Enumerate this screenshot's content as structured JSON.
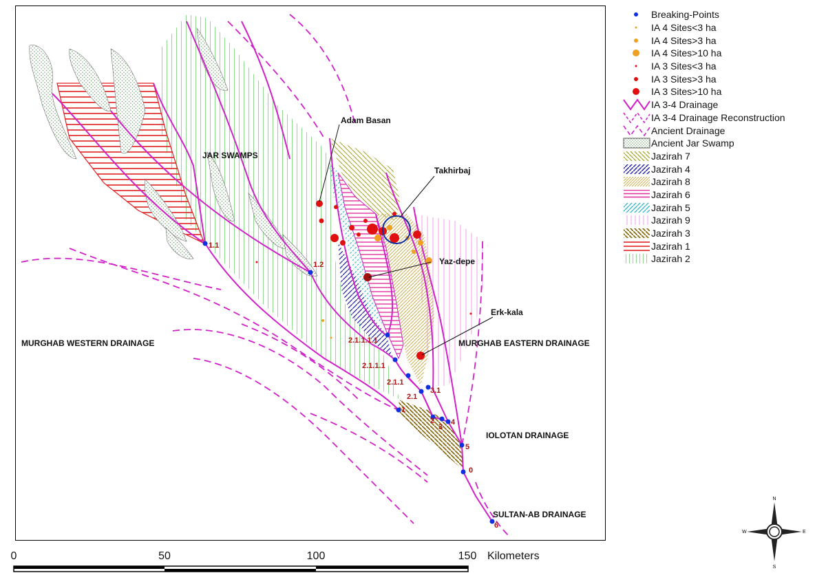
{
  "map": {
    "region_labels": {
      "jar_swamps": "JAR SWAMPS",
      "murghab_western": "MURGHAB WESTERN DRAINAGE",
      "murghab_eastern": "MURGHAB EASTERN DRAINAGE",
      "iolotan": "IOLOTAN DRAINAGE",
      "sultan_ab": "SULTAN-AB DRAINAGE"
    },
    "site_labels": {
      "adam_basan": "Adam Basan",
      "takhirbaj": "Takhirbaj",
      "yaz_depe": "Yaz-depe",
      "erk_kala": "Erk-kala"
    },
    "breaking_points": [
      "1.1",
      "1.2",
      "2.1.1.1.1",
      "2.1.1.1",
      "2.1.1",
      "2.1",
      "3.1",
      "1",
      "2",
      "3",
      "4",
      "5",
      "0",
      "6"
    ],
    "colors": {
      "drainage": "#d020c8",
      "breaking_point": "#1030e0",
      "ia3_site": "#e01010",
      "ia4_site": "#f0a020",
      "jazirah1": "#e02020",
      "jazirah2": "#90d890",
      "jazirah3": "#806000",
      "jazirah4": "#2020a0",
      "jazirah5": "#20b0c0",
      "jazirah6": "#e030a0",
      "jazirah7": "#a0a020",
      "jazirah8": "#c8b050",
      "jazirah9": "#e8a0e8",
      "swamp": "#70a070"
    }
  },
  "legend": {
    "items": [
      {
        "label": "Breaking-Points",
        "symbol": "breaking-point"
      },
      {
        "label": "IA 4 Sites<3 ha",
        "symbol": "ia4-small"
      },
      {
        "label": "IA 4 Sites>3 ha",
        "symbol": "ia4-medium"
      },
      {
        "label": "IA 4 Sites>10 ha",
        "symbol": "ia4-large"
      },
      {
        "label": "IA 3 Sites<3 ha",
        "symbol": "ia3-small"
      },
      {
        "label": "IA 3 Sites>3 ha",
        "symbol": "ia3-medium"
      },
      {
        "label": "IA 3 Sites>10 ha",
        "symbol": "ia3-large"
      },
      {
        "label": "IA 3-4 Drainage",
        "symbol": "drainage"
      },
      {
        "label": "IA 3-4 Drainage Reconstruction",
        "symbol": "drainage-reconstruction"
      },
      {
        "label": "Ancient Drainage",
        "symbol": "ancient-drainage"
      },
      {
        "label": "Ancient Jar Swamp",
        "symbol": "swamp"
      },
      {
        "label": "Jazirah 7",
        "symbol": "jazirah7"
      },
      {
        "label": "Jazirah 4",
        "symbol": "jazirah4"
      },
      {
        "label": "Jazirah 8",
        "symbol": "jazirah8"
      },
      {
        "label": "Jazirah 6",
        "symbol": "jazirah6"
      },
      {
        "label": "Jazirah 5",
        "symbol": "jazirah5"
      },
      {
        "label": "Jazirah 9",
        "symbol": "jazirah9"
      },
      {
        "label": "Jazirah 3",
        "symbol": "jazirah3"
      },
      {
        "label": "Jazirah 1",
        "symbol": "jazirah1"
      },
      {
        "label": "Jazirah 2",
        "symbol": "jazirah2"
      }
    ]
  },
  "scale": {
    "ticks": [
      "0",
      "50",
      "100",
      "150"
    ],
    "unit": "Kilometers"
  },
  "compass": {
    "n": "N",
    "s": "S",
    "e": "E",
    "w": "W"
  }
}
